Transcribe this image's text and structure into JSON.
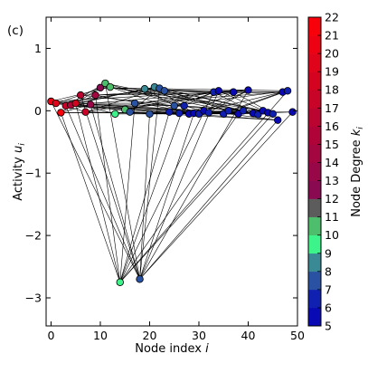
{
  "chart_data": {
    "type": "scatter",
    "panel_label": "(c)",
    "xlabel": "Node index",
    "xlabel_var": "i",
    "ylabel": "Activity",
    "ylabel_var": "u",
    "ylabel_sub": "i",
    "xlim": [
      -1,
      50
    ],
    "ylim": [
      -3.45,
      1.5
    ],
    "xticks": [
      0,
      10,
      20,
      30,
      40,
      50
    ],
    "yticks": [
      1,
      0,
      -1,
      -2,
      -3
    ],
    "grid": false,
    "colorbar": {
      "label": "Node Degree",
      "label_var": "k",
      "label_sub": "i",
      "min": 5,
      "max": 22,
      "ticks": [
        5,
        6,
        7,
        8,
        9,
        10,
        11,
        12,
        13,
        14,
        15,
        16,
        17,
        18,
        19,
        20,
        21,
        22
      ],
      "colors": [
        "#0a0ab4",
        "#1020b0",
        "#2a52a2",
        "#3a8a96",
        "#3cf48a",
        "#4cbe6c",
        "#5c5c5c",
        "#8a0a52",
        "#980848",
        "#a40640",
        "#b00438",
        "#bc0430",
        "#c80428",
        "#d40420",
        "#e0041a",
        "#ec0212",
        "#f8010a"
      ]
    },
    "nodes": [
      {
        "x": 0,
        "y": 0.15,
        "degree": 20
      },
      {
        "x": 1,
        "y": 0.12,
        "degree": 19
      },
      {
        "x": 2,
        "y": -0.03,
        "degree": 21
      },
      {
        "x": 3,
        "y": 0.08,
        "degree": 17
      },
      {
        "x": 4,
        "y": 0.09,
        "degree": 15
      },
      {
        "x": 5,
        "y": 0.12,
        "degree": 18
      },
      {
        "x": 6,
        "y": 0.25,
        "degree": 16
      },
      {
        "x": 7,
        "y": -0.02,
        "degree": 17
      },
      {
        "x": 8,
        "y": 0.1,
        "degree": 13
      },
      {
        "x": 9,
        "y": 0.25,
        "degree": 14
      },
      {
        "x": 10,
        "y": 0.37,
        "degree": 12
      },
      {
        "x": 11,
        "y": 0.44,
        "degree": 10
      },
      {
        "x": 12,
        "y": 0.38,
        "degree": 10
      },
      {
        "x": 13,
        "y": -0.05,
        "degree": 9
      },
      {
        "x": 14,
        "y": -2.75,
        "degree": 9
      },
      {
        "x": 15,
        "y": 0.02,
        "degree": 10
      },
      {
        "x": 16,
        "y": -0.02,
        "degree": 7
      },
      {
        "x": 17,
        "y": 0.12,
        "degree": 7
      },
      {
        "x": 18,
        "y": -2.7,
        "degree": 7
      },
      {
        "x": 19,
        "y": 0.35,
        "degree": 8
      },
      {
        "x": 20,
        "y": -0.05,
        "degree": 7
      },
      {
        "x": 21,
        "y": 0.38,
        "degree": 8
      },
      {
        "x": 22,
        "y": 0.36,
        "degree": 7
      },
      {
        "x": 23,
        "y": 0.32,
        "degree": 7
      },
      {
        "x": 24,
        "y": -0.02,
        "degree": 6
      },
      {
        "x": 25,
        "y": 0.08,
        "degree": 7
      },
      {
        "x": 26,
        "y": -0.04,
        "degree": 6
      },
      {
        "x": 27,
        "y": 0.08,
        "degree": 6
      },
      {
        "x": 28,
        "y": -0.05,
        "degree": 5
      },
      {
        "x": 29,
        "y": -0.04,
        "degree": 5
      },
      {
        "x": 30,
        "y": -0.05,
        "degree": 6
      },
      {
        "x": 31,
        "y": 0.0,
        "degree": 5
      },
      {
        "x": 32,
        "y": -0.03,
        "degree": 6
      },
      {
        "x": 33,
        "y": 0.3,
        "degree": 6
      },
      {
        "x": 34,
        "y": 0.32,
        "degree": 5
      },
      {
        "x": 35,
        "y": -0.05,
        "degree": 6
      },
      {
        "x": 36,
        "y": 0.0,
        "degree": 6
      },
      {
        "x": 37,
        "y": 0.3,
        "degree": 5
      },
      {
        "x": 38,
        "y": -0.05,
        "degree": 5
      },
      {
        "x": 39,
        "y": 0.0,
        "degree": 6
      },
      {
        "x": 40,
        "y": 0.33,
        "degree": 5
      },
      {
        "x": 41,
        "y": -0.04,
        "degree": 5
      },
      {
        "x": 42,
        "y": -0.06,
        "degree": 6
      },
      {
        "x": 43,
        "y": 0.0,
        "degree": 5
      },
      {
        "x": 44,
        "y": -0.03,
        "degree": 5
      },
      {
        "x": 45,
        "y": -0.05,
        "degree": 6
      },
      {
        "x": 46,
        "y": -0.15,
        "degree": 5
      },
      {
        "x": 47,
        "y": 0.3,
        "degree": 5
      },
      {
        "x": 48,
        "y": 0.32,
        "degree": 6
      },
      {
        "x": 49,
        "y": -0.02,
        "degree": 5
      }
    ],
    "edges": [
      [
        14,
        2
      ],
      [
        14,
        5
      ],
      [
        14,
        9
      ],
      [
        14,
        17
      ],
      [
        14,
        24
      ],
      [
        14,
        27
      ],
      [
        14,
        33
      ],
      [
        14,
        38
      ],
      [
        14,
        45
      ],
      [
        14,
        48
      ],
      [
        18,
        0
      ],
      [
        18,
        3
      ],
      [
        18,
        6
      ],
      [
        18,
        8
      ],
      [
        18,
        11
      ],
      [
        18,
        20
      ],
      [
        18,
        22
      ],
      [
        18,
        29
      ],
      [
        18,
        34
      ],
      [
        18,
        40
      ],
      [
        18,
        46
      ],
      [
        18,
        49
      ],
      [
        0,
        12
      ],
      [
        0,
        20
      ],
      [
        1,
        35
      ],
      [
        2,
        44
      ],
      [
        3,
        26
      ],
      [
        4,
        40
      ],
      [
        5,
        31
      ],
      [
        6,
        47
      ],
      [
        7,
        22
      ],
      [
        8,
        38
      ],
      [
        9,
        30
      ],
      [
        10,
        48
      ],
      [
        11,
        42
      ],
      [
        12,
        36
      ],
      [
        13,
        44
      ],
      [
        15,
        40
      ],
      [
        16,
        46
      ],
      [
        17,
        39
      ],
      [
        19,
        41
      ],
      [
        21,
        45
      ],
      [
        22,
        43
      ],
      [
        23,
        47
      ],
      [
        25,
        48
      ],
      [
        26,
        43
      ],
      [
        28,
        46
      ],
      [
        0,
        33
      ],
      [
        1,
        22
      ],
      [
        2,
        10
      ],
      [
        3,
        45
      ],
      [
        4,
        29
      ],
      [
        5,
        21
      ],
      [
        6,
        25
      ],
      [
        7,
        34
      ],
      [
        8,
        27
      ],
      [
        9,
        40
      ],
      [
        10,
        37
      ],
      [
        11,
        32
      ],
      [
        12,
        43
      ],
      [
        13,
        35
      ],
      [
        15,
        26
      ],
      [
        16,
        30
      ],
      [
        17,
        47
      ],
      [
        19,
        37
      ],
      [
        20,
        41
      ],
      [
        21,
        36
      ],
      [
        23,
        42
      ],
      [
        24,
        45
      ],
      [
        27,
        44
      ],
      [
        29,
        48
      ],
      [
        30,
        40
      ],
      [
        31,
        46
      ],
      [
        32,
        49
      ],
      [
        33,
        42
      ],
      [
        34,
        44
      ],
      [
        35,
        48
      ],
      [
        36,
        47
      ],
      [
        37,
        45
      ],
      [
        38,
        49
      ],
      [
        0,
        7
      ],
      [
        1,
        6
      ],
      [
        2,
        8
      ],
      [
        3,
        11
      ],
      [
        4,
        9
      ],
      [
        5,
        13
      ],
      [
        6,
        10
      ],
      [
        1,
        17
      ],
      [
        4,
        19
      ],
      [
        2,
        26
      ],
      [
        7,
        30
      ],
      [
        9,
        23
      ],
      [
        12,
        28
      ],
      [
        15,
        33
      ],
      [
        16,
        22
      ],
      [
        19,
        25
      ],
      [
        21,
        29
      ],
      [
        24,
        39
      ],
      [
        25,
        34
      ],
      [
        26,
        38
      ],
      [
        27,
        33
      ],
      [
        28,
        37
      ],
      [
        31,
        41
      ],
      [
        32,
        40
      ],
      [
        35,
        39
      ]
    ]
  }
}
